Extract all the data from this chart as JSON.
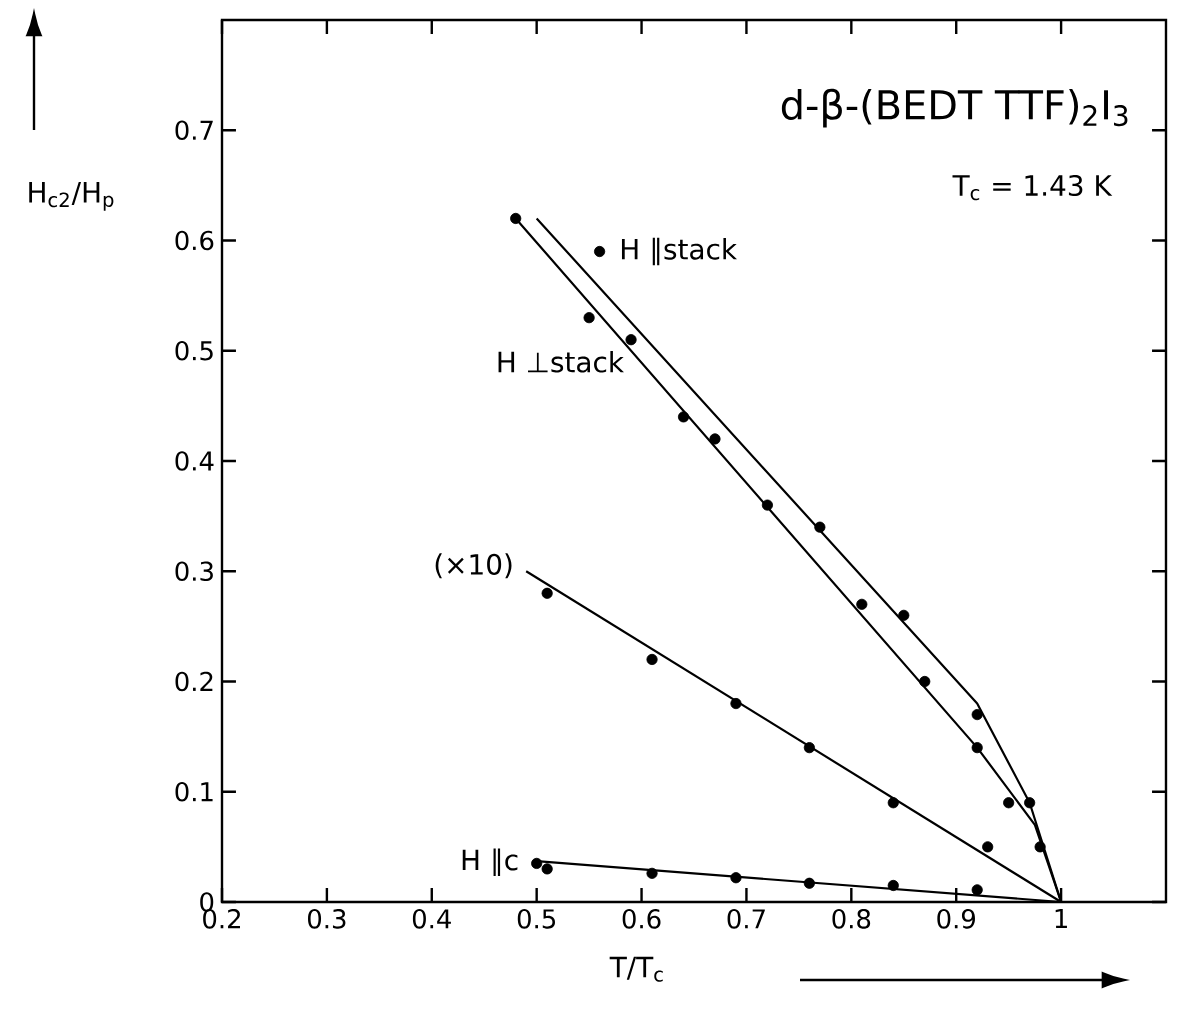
{
  "chart_data": {
    "type": "scatter",
    "title": "d-β-(BEDT TTF)$_{2}$I$_{3}$",
    "subtitle": "T$_{c}$ = 1.43 K",
    "xlabel": "T/T$_{c}$",
    "ylabel": "H$_{c2}$/H$_{p}$",
    "xlim": [
      0.2,
      1.1
    ],
    "ylim": [
      0,
      0.8
    ],
    "xticks": [
      0.2,
      0.3,
      0.4,
      0.5,
      0.6,
      0.7,
      0.8,
      0.9,
      {
        "value": 1,
        "label": "1"
      }
    ],
    "yticks": [
      0,
      0.1,
      0.2,
      0.3,
      0.4,
      0.5,
      0.6,
      0.7
    ],
    "grid": false,
    "annotations": [
      "(×10)"
    ],
    "series": [
      {
        "name": "H ⊥stack",
        "marker": "circle",
        "color": "#000000",
        "x": [
          0.48,
          0.55,
          0.59,
          0.64,
          0.67,
          0.72,
          0.81,
          0.87,
          0.92,
          0.95,
          0.98
        ],
        "values": [
          0.62,
          0.53,
          0.51,
          0.44,
          0.42,
          0.36,
          0.27,
          0.2,
          0.14,
          0.09,
          0.05
        ]
      },
      {
        "name": "H ∥stack",
        "marker": "circle",
        "color": "#000000",
        "x": [
          0.56,
          0.77,
          0.85,
          0.92,
          0.97
        ],
        "values": [
          0.59,
          0.34,
          0.26,
          0.17,
          0.09
        ]
      },
      {
        "marker": "circle",
        "color": "#000000",
        "x": [
          0.51,
          0.61,
          0.69,
          0.76,
          0.84,
          0.93
        ],
        "values": [
          0.28,
          0.22,
          0.18,
          0.14,
          0.09,
          0.05
        ]
      },
      {
        "name": "H ∥c",
        "marker": "circle",
        "color": "#000000",
        "x": [
          0.5,
          0.51,
          0.61,
          0.69,
          0.76,
          0.84,
          0.92
        ],
        "values": [
          0.035,
          0.03,
          0.026,
          0.022,
          0.017,
          0.015,
          0.011
        ]
      },
      {
        "type": "line",
        "marker": "none",
        "color": "#000000",
        "x": [
          0.48,
          0.92,
          0.975,
          1.0
        ],
        "values": [
          0.62,
          0.14,
          0.07,
          0.0
        ]
      },
      {
        "type": "line",
        "marker": "none",
        "color": "#000000",
        "x": [
          0.5,
          0.92,
          0.97,
          1.0
        ],
        "values": [
          0.62,
          0.18,
          0.09,
          0.0
        ]
      },
      {
        "type": "line",
        "marker": "none",
        "color": "#000000",
        "x": [
          0.49,
          1.0
        ],
        "values": [
          0.3,
          0.0
        ]
      },
      {
        "type": "line",
        "marker": "none",
        "color": "#000000",
        "x": [
          0.5,
          1.0
        ],
        "values": [
          0.037,
          0.0
        ]
      }
    ]
  }
}
